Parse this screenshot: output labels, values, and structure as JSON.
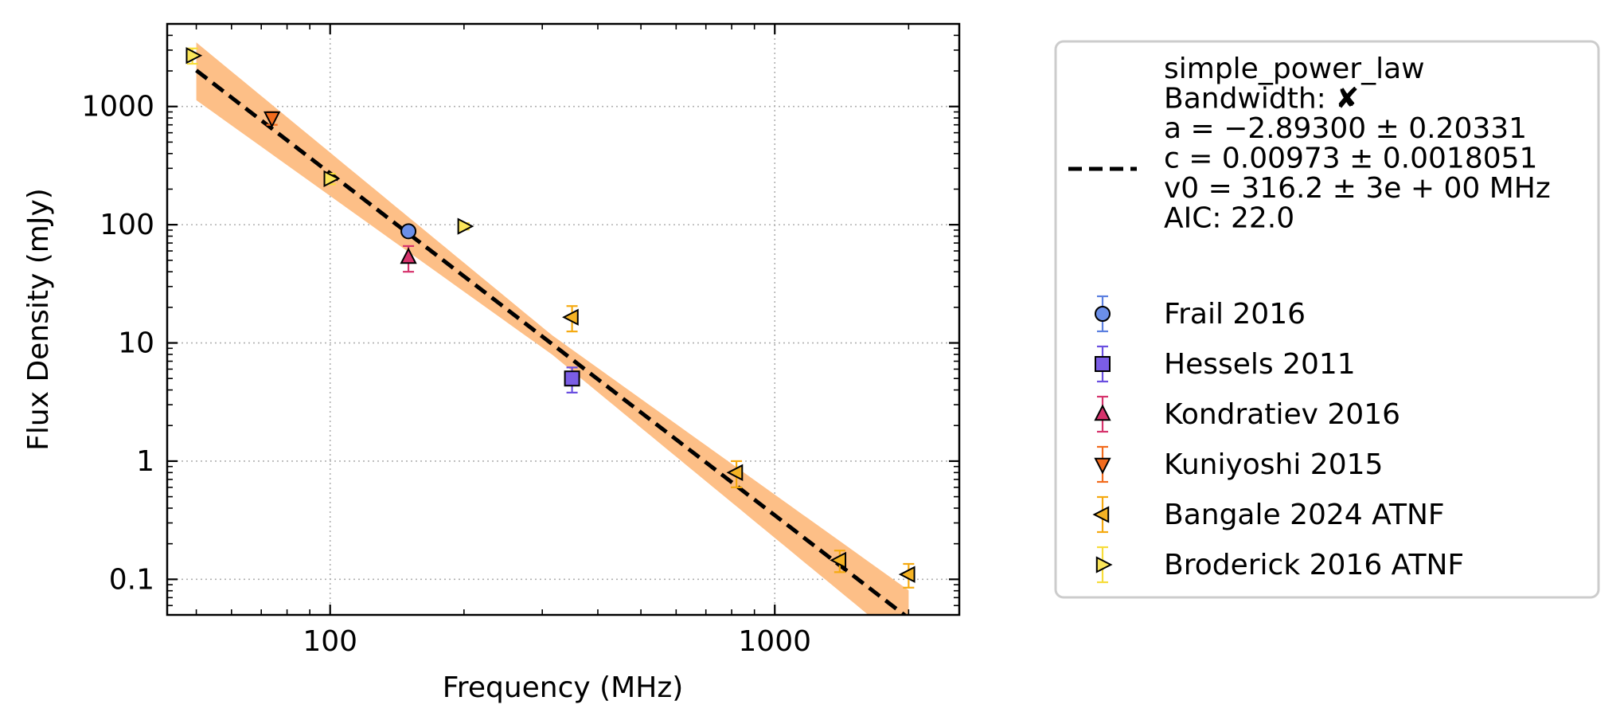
{
  "chart_data": {
    "type": "scatter",
    "title": "",
    "xlabel": "Frequency (MHz)",
    "ylabel": "Flux Density (mJy)",
    "xscale": "log",
    "yscale": "log",
    "xlim": [
      43,
      2600
    ],
    "ylim": [
      0.05,
      5000
    ],
    "grid": true,
    "legend_position": "outside-right",
    "x_ticks": [
      {
        "value": 100,
        "label": "100"
      },
      {
        "value": 1000,
        "label": "1000"
      }
    ],
    "y_ticks": [
      {
        "value": 0.1,
        "label": "0.1"
      },
      {
        "value": 1,
        "label": "1"
      },
      {
        "value": 10,
        "label": "10"
      },
      {
        "value": 100,
        "label": "100"
      },
      {
        "value": 1000,
        "label": "1000"
      }
    ],
    "fit": {
      "name": "simple_power_law",
      "legend_lines": [
        "simple_power_law",
        "Bandwidth: ✘",
        "a = −2.89300 ± 0.20331",
        "c = 0.00973 ± 0.0018051",
        "v0 = 316.2 ± 3e + 00 MHz",
        "AIC: 22.0"
      ],
      "a": -2.893,
      "a_err": 0.20331,
      "c": 0.00973,
      "c_err": 0.0018051,
      "v0": 316.2,
      "x_range": [
        50,
        2000
      ],
      "line_color": "#000000",
      "band_color": "#fdbf87"
    },
    "series": [
      {
        "name": "Frail 2016",
        "marker": "circle",
        "color": "#6b8fe8",
        "err_color": "#5b7fe0",
        "points": [
          {
            "x": 150,
            "y": 88,
            "yerr": [
              6,
              6
            ]
          }
        ]
      },
      {
        "name": "Hessels 2011",
        "marker": "square",
        "color": "#7b5de6",
        "err_color": "#6a4fe0",
        "points": [
          {
            "x": 350,
            "y": 5.0,
            "yerr": [
              1.2,
              1.2
            ]
          }
        ]
      },
      {
        "name": "Kondratiev 2016",
        "marker": "triangle-up",
        "color": "#d6336c",
        "err_color": "#d6336c",
        "points": [
          {
            "x": 150,
            "y": 53,
            "yerr": [
              13,
              13
            ]
          }
        ]
      },
      {
        "name": "Kuniyoshi 2015",
        "marker": "triangle-down",
        "color": "#f26b1d",
        "err_color": "#f26b1d",
        "points": [
          {
            "x": 74,
            "y": 800,
            "yerr": [
              100,
              100
            ]
          }
        ]
      },
      {
        "name": "Bangale 2024 ATNF",
        "marker": "triangle-left",
        "color": "#f5b324",
        "err_color": "#f5a90f",
        "points": [
          {
            "x": 350,
            "y": 16.5,
            "yerr": [
              4,
              4
            ]
          },
          {
            "x": 820,
            "y": 0.8,
            "yerr": [
              0.2,
              0.2
            ]
          },
          {
            "x": 1400,
            "y": 0.145,
            "yerr": [
              0.03,
              0.03
            ]
          },
          {
            "x": 2000,
            "y": 0.11,
            "yerr": [
              0.025,
              0.025
            ]
          }
        ]
      },
      {
        "name": "Broderick 2016 ATNF",
        "marker": "triangle-right",
        "color": "#fbe55a",
        "err_color": "#f7dc3a",
        "points": [
          {
            "x": 49,
            "y": 2700,
            "yerr": [
              400,
              400
            ]
          },
          {
            "x": 100,
            "y": 245,
            "yerr": [
              25,
              25
            ]
          },
          {
            "x": 200,
            "y": 97,
            "yerr": [
              6,
              6
            ]
          }
        ]
      }
    ]
  }
}
